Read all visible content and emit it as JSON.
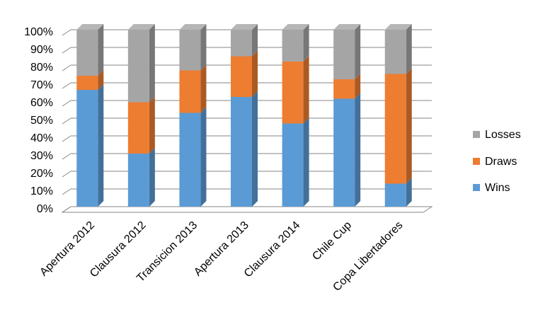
{
  "chart_data": {
    "type": "bar",
    "stacked": true,
    "percent": true,
    "categories": [
      "Apertura 2012",
      "Clausura 2012",
      "Transicion 2013",
      "Apertura 2013",
      "Clausura 2014",
      "Chile Cup",
      "Copa Libertadores"
    ],
    "series": [
      {
        "name": "Wins",
        "color": "#5b9bd5",
        "values": [
          66,
          30,
          53,
          62,
          47,
          61,
          13
        ]
      },
      {
        "name": "Draws",
        "color": "#ed7d31",
        "values": [
          8,
          29,
          24,
          23,
          35,
          11,
          62
        ]
      },
      {
        "name": "Losses",
        "color": "#a5a5a5",
        "values": [
          26,
          41,
          23,
          15,
          18,
          28,
          25
        ]
      }
    ],
    "ylim": [
      0,
      100
    ],
    "yticks": [
      {
        "value": 0,
        "label": "0%"
      },
      {
        "value": 10,
        "label": "10%"
      },
      {
        "value": 20,
        "label": "20%"
      },
      {
        "value": 30,
        "label": "30%"
      },
      {
        "value": 40,
        "label": "40%"
      },
      {
        "value": 50,
        "label": "50%"
      },
      {
        "value": 60,
        "label": "60%"
      },
      {
        "value": 70,
        "label": "70%"
      },
      {
        "value": 80,
        "label": "80%"
      },
      {
        "value": 90,
        "label": "90%"
      },
      {
        "value": 100,
        "label": "100%"
      }
    ],
    "grid": true,
    "legend": "right"
  }
}
